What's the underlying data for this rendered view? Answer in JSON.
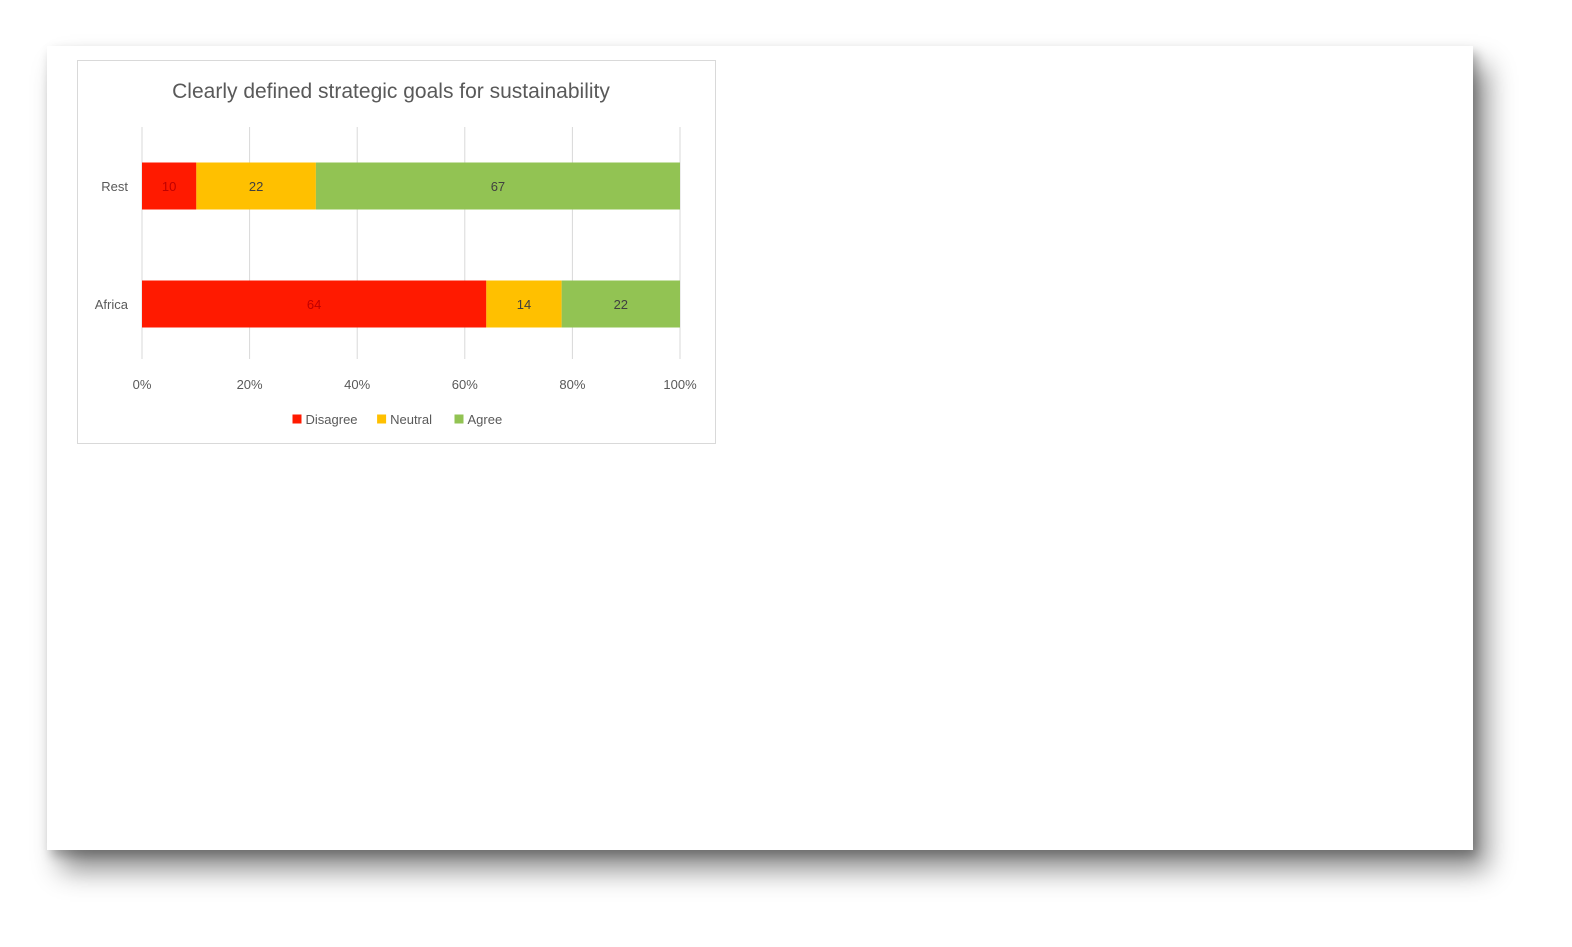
{
  "chart_data": {
    "type": "bar",
    "orientation": "horizontal",
    "stacked": "percent",
    "title": "Clearly defined strategic goals for sustainability",
    "categories": [
      "Rest",
      "Africa"
    ],
    "series": [
      {
        "name": "Disagree",
        "values": [
          10,
          64
        ],
        "color": "#ff1a00",
        "label_color": "#c00000"
      },
      {
        "name": "Neutral",
        "values": [
          22,
          14
        ],
        "color": "#ffc000",
        "label_color": "#404040"
      },
      {
        "name": "Agree",
        "values": [
          67,
          22
        ],
        "color": "#92c353",
        "label_color": "#404040"
      }
    ],
    "x_ticks": [
      "0%",
      "20%",
      "40%",
      "60%",
      "80%",
      "100%"
    ],
    "xlim": [
      0,
      100
    ],
    "grid": true,
    "legend_position": "bottom",
    "xlabel": "",
    "ylabel": ""
  },
  "colors": {
    "gridline": "#d9d9d9",
    "text": "#595959",
    "frame": "#d9d9d9"
  }
}
